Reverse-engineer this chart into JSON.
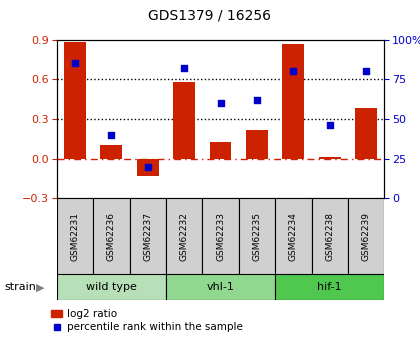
{
  "title": "GDS1379 / 16256",
  "samples": [
    "GSM62231",
    "GSM62236",
    "GSM62237",
    "GSM62232",
    "GSM62233",
    "GSM62235",
    "GSM62234",
    "GSM62238",
    "GSM62239"
  ],
  "log2_ratio": [
    0.88,
    0.1,
    -0.13,
    0.58,
    0.13,
    0.22,
    0.87,
    0.01,
    0.38
  ],
  "percentile_rank": [
    85,
    40,
    20,
    82,
    60,
    62,
    80,
    46,
    80
  ],
  "groups": [
    {
      "label": "wild type",
      "indices": [
        0,
        1,
        2
      ],
      "color": "#b8e0b8"
    },
    {
      "label": "vhl-1",
      "indices": [
        3,
        4,
        5
      ],
      "color": "#90d890"
    },
    {
      "label": "hif-1",
      "indices": [
        6,
        7,
        8
      ],
      "color": "#50c850"
    }
  ],
  "bar_color": "#cc2200",
  "scatter_color": "#0000cc",
  "ylim_left": [
    -0.3,
    0.9
  ],
  "ylim_right": [
    0,
    100
  ],
  "yticks_left": [
    -0.3,
    0.0,
    0.3,
    0.6,
    0.9
  ],
  "yticks_right": [
    0,
    25,
    50,
    75,
    100
  ],
  "hline_dotted": [
    0.3,
    0.6
  ],
  "hline_dashdot": 0.0,
  "background_color": "#ffffff",
  "plot_bg": "#ffffff",
  "legend_items": [
    "log2 ratio",
    "percentile rank within the sample"
  ],
  "strain_label": "strain"
}
